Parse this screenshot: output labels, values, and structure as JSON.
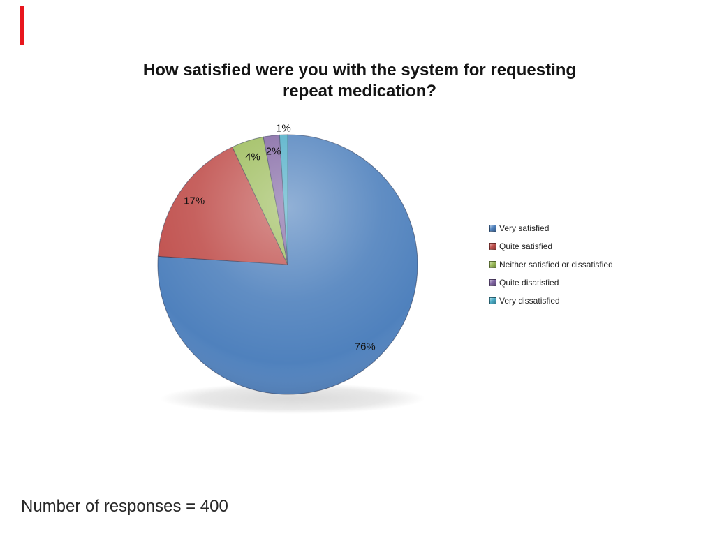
{
  "slide": {
    "accent_bar_color": "#e8161d",
    "footer": "Number of responses = 400"
  },
  "chart_data": {
    "type": "pie",
    "title": "How satisfied were you with the system for requesting repeat medication?",
    "title_lines": [
      "How satisfied were you with the system for requesting",
      "repeat medication?"
    ],
    "categories": [
      "Very satisfied",
      "Quite satisfied",
      "Neither satisfied or dissatisfied",
      "Quite disatisfied",
      "Very dissatisfied"
    ],
    "values": [
      76,
      17,
      4,
      2,
      1
    ],
    "unit": "%",
    "slice_labels": [
      "76%",
      "17%",
      "4%",
      "2%",
      "1%"
    ],
    "colors": [
      "#4f81bd",
      "#c0504d",
      "#9bbb59",
      "#8064a2",
      "#4bacc6"
    ],
    "start_angle_deg": 0,
    "direction": "clockwise",
    "legend_position": "right",
    "title_color": "#141414",
    "label_color": "#111111"
  }
}
